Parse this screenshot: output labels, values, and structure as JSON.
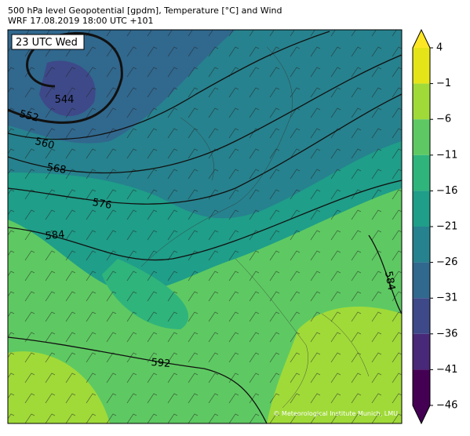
{
  "header": {
    "title": "500 hPa level Geopotential [gpdm], Temperature [°C] and Wind",
    "subtitle": "WRF 17.08.2019 18:00 UTC +101"
  },
  "map": {
    "time_label": "23 UTC Wed",
    "contour_labels": [
      544,
      552,
      560,
      568,
      576,
      584,
      592,
      584
    ],
    "credit": "© Meteorological Institute Munich, LMU"
  },
  "colorbar": {
    "ticks": [
      4,
      {
        "value": -1,
        "label": "−1"
      },
      {
        "value": -6,
        "label": "−6"
      },
      {
        "value": -11,
        "label": "−11"
      },
      {
        "value": -16,
        "label": "−16"
      },
      {
        "value": -21,
        "label": "−21"
      },
      {
        "value": -26,
        "label": "−26"
      },
      {
        "value": -31,
        "label": "−31"
      },
      {
        "value": -36,
        "label": "−36"
      },
      {
        "value": -41,
        "label": "−41"
      },
      {
        "value": -46,
        "label": "−46"
      }
    ],
    "colors": [
      "#e5e419",
      "#a0da39",
      "#5ec962",
      "#2fb47c",
      "#1f9e89",
      "#26828e",
      "#31688e",
      "#3e4989",
      "#482878",
      "#440154"
    ],
    "over_color": "#fde725",
    "under_color": "#440154"
  }
}
